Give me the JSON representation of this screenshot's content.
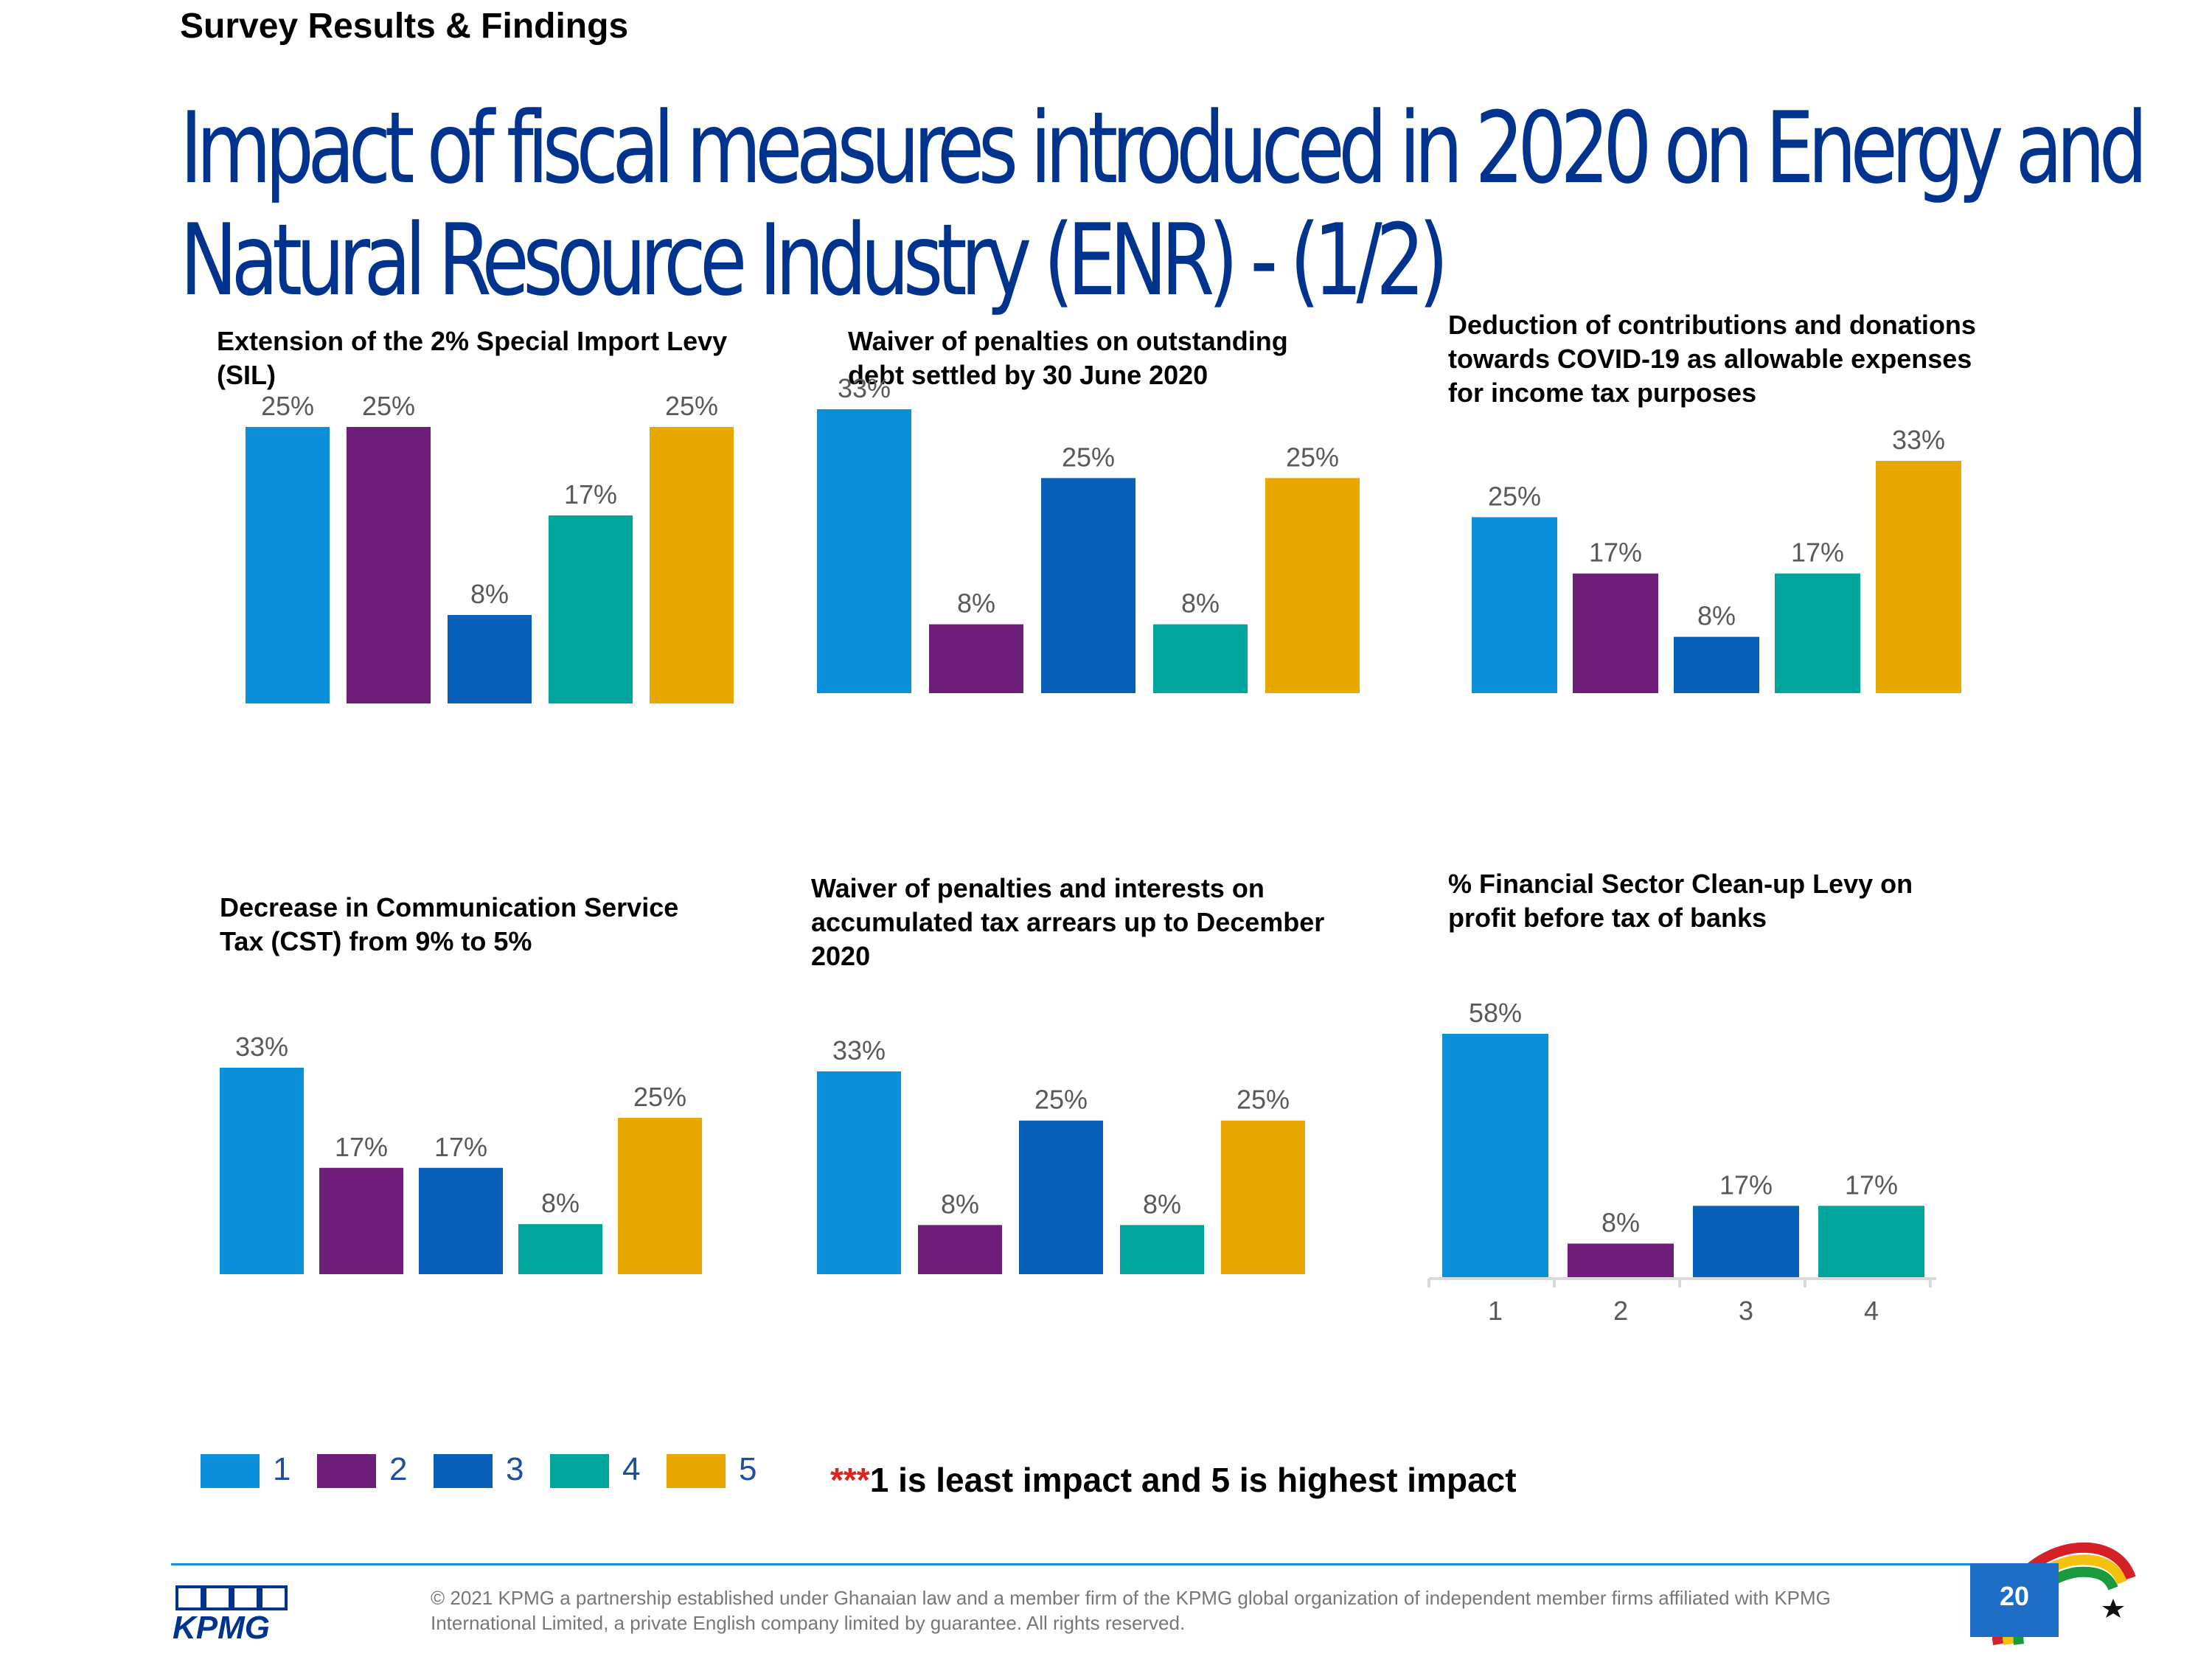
{
  "header": {
    "section": "Survey Results & Findings",
    "title_line1": "Impact of fiscal measures introduced in 2020 on Energy and",
    "title_line2": "Natural Resource Industry (ENR) - (1/2)"
  },
  "colors": {
    "c1": "#0C8FD9",
    "c2": "#6E1E78",
    "c3": "#0860B8",
    "c4": "#00A59B",
    "c5": "#E9A800",
    "title": "#00338D",
    "value_label": "#595959"
  },
  "chart_data": [
    {
      "type": "bar",
      "title": "Extension of the 2% Special Import Levy (SIL)",
      "title_lines": [
        "Extension of the 2% Special Import Levy",
        "(SIL)"
      ],
      "categories": [
        "1",
        "2",
        "3",
        "4",
        "5"
      ],
      "values": [
        25,
        25,
        8,
        17,
        25
      ],
      "labels": [
        "25%",
        "25%",
        "8%",
        "17%",
        "25%"
      ],
      "ylim": [
        0,
        33
      ],
      "xlabel": "",
      "ylabel": "",
      "grid": false
    },
    {
      "type": "bar",
      "title": "Waiver of penalties  on outstanding debt settled by 30 June 2020",
      "title_lines": [
        "Waiver of penalties  on outstanding",
        "debt settled by 30 June 2020"
      ],
      "categories": [
        "1",
        "2",
        "3",
        "4",
        "5"
      ],
      "values": [
        33,
        8,
        25,
        8,
        25
      ],
      "labels": [
        "33%",
        "8%",
        "25%",
        "8%",
        "25%"
      ],
      "ylim": [
        0,
        33
      ],
      "xlabel": "",
      "ylabel": "",
      "grid": false
    },
    {
      "type": "bar",
      "title": "Deduction of contributions and donations towards COVID-19 as allowable expenses for income tax purposes",
      "title_lines": [
        "Deduction of contributions and donations",
        "towards COVID-19 as allowable expenses",
        "for income tax purposes"
      ],
      "categories": [
        "1",
        "2",
        "3",
        "4",
        "5"
      ],
      "values": [
        25,
        17,
        8,
        17,
        33
      ],
      "labels": [
        "25%",
        "17%",
        "8%",
        "17%",
        "33%"
      ],
      "ylim": [
        0,
        33
      ],
      "xlabel": "",
      "ylabel": "",
      "grid": false
    },
    {
      "type": "bar",
      "title": "Decrease in Communication Service Tax (CST) from 9% to 5%",
      "title_lines": [
        "Decrease in Communication Service",
        "Tax (CST) from 9% to 5%"
      ],
      "categories": [
        "1",
        "2",
        "3",
        "4",
        "5"
      ],
      "values": [
        33,
        17,
        17,
        8,
        25
      ],
      "labels": [
        "33%",
        "17%",
        "17%",
        "8%",
        "25%"
      ],
      "ylim": [
        0,
        33
      ],
      "xlabel": "",
      "ylabel": "",
      "grid": false
    },
    {
      "type": "bar",
      "title": "Waiver of penalties and interests on accumulated tax arrears up to December 2020",
      "title_lines": [
        "Waiver of penalties and interests on",
        "accumulated tax arrears up to December",
        "2020"
      ],
      "categories": [
        "1",
        "2",
        "3",
        "4",
        "5"
      ],
      "values": [
        33,
        8,
        25,
        8,
        25
      ],
      "labels": [
        "33%",
        "8%",
        "25%",
        "8%",
        "25%"
      ],
      "ylim": [
        0,
        33
      ],
      "xlabel": "",
      "ylabel": "",
      "grid": false
    },
    {
      "type": "bar",
      "title": "% Financial Sector Clean-up Levy on profit before tax of banks",
      "title_lines": [
        "% Financial Sector Clean-up Levy on",
        "profit before tax of banks"
      ],
      "categories": [
        "1",
        "2",
        "3",
        "4"
      ],
      "values": [
        58,
        8,
        17,
        17
      ],
      "labels": [
        "58%",
        "8%",
        "17%",
        "17%"
      ],
      "ylim": [
        0,
        58
      ],
      "xlabel": "",
      "ylabel": "",
      "grid": false,
      "show_x_ticks": true
    }
  ],
  "legend": {
    "items": [
      {
        "label": "1",
        "color": "#0C8FD9"
      },
      {
        "label": "2",
        "color": "#6E1E78"
      },
      {
        "label": "3",
        "color": "#0860B8"
      },
      {
        "label": "4",
        "color": "#00A59B"
      },
      {
        "label": "5",
        "color": "#E9A800"
      }
    ]
  },
  "note": {
    "stars": "***",
    "text": "1 is least impact and 5 is highest impact"
  },
  "footer": {
    "logo_text": "KPMG",
    "copyright_line1": "© 2021 KPMG a partnership established under Ghanaian law and a member firm of the KPMG global organization of independent member firms affiliated with KPMG",
    "copyright_line2": "International Limited, a private English company limited by guarantee. All rights reserved.",
    "page_number": "20"
  }
}
